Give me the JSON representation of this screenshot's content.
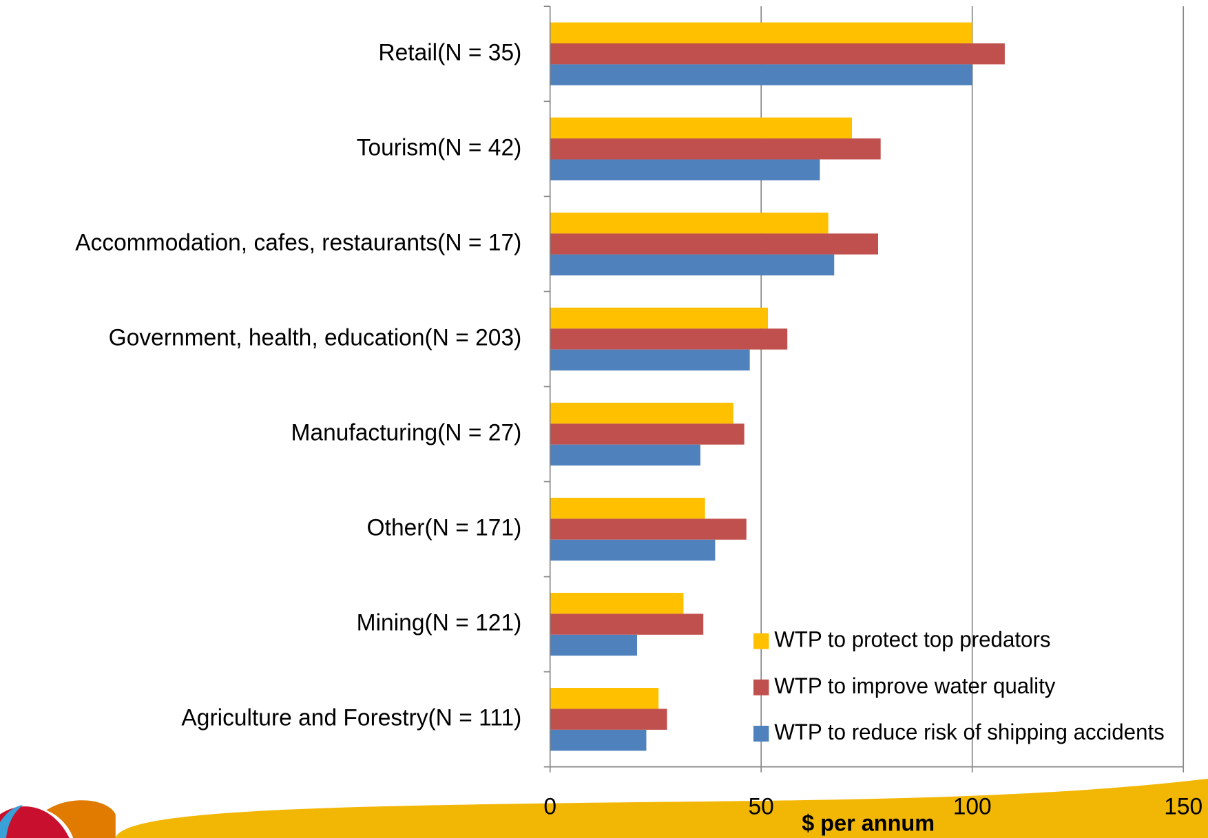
{
  "chart_data": {
    "type": "hbar",
    "categories": [
      "Retail(N = 35)",
      "Tourism(N = 42)",
      "Accommodation, cafes, restaurants(N = 17)",
      "Government, health, education(N = 203)",
      "Manufacturing(N = 27)",
      "Other(N = 171)",
      "Mining(N = 121)",
      "Agriculture and Forestry(N = 111)"
    ],
    "series": [
      {
        "name": "WTP to protect top predators",
        "color": "#ffc000",
        "values": [
          100,
          71.5,
          65.9,
          51.6,
          43.4,
          36.7,
          31.6,
          25.7
        ]
      },
      {
        "name": "WTP to improve water quality",
        "color": "#c0504d",
        "values": [
          107.7,
          78.3,
          77.7,
          56.2,
          46,
          46.5,
          36.3,
          27.7
        ]
      },
      {
        "name": "WTP to reduce risk of shipping accidents",
        "color": "#4f81bd",
        "values": [
          100,
          63.9,
          67.3,
          47.3,
          35.6,
          39.1,
          20.6,
          22.8
        ]
      }
    ],
    "xlim": [
      0,
      150
    ],
    "xticks": [
      0,
      50,
      100,
      150
    ],
    "xlabel": "$ per annum",
    "grid": true,
    "legend": "bottom-right"
  }
}
